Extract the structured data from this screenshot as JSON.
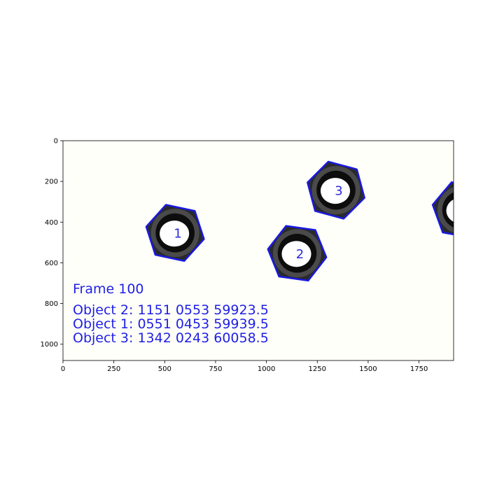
{
  "figure": {
    "x_axis": {
      "min": 0,
      "max": 1920,
      "ticks": [
        0,
        250,
        500,
        750,
        1000,
        1250,
        1500,
        1750
      ]
    },
    "y_axis": {
      "min": 0,
      "max": 1080,
      "inverted": true,
      "ticks": [
        0,
        200,
        400,
        600,
        800,
        1000
      ]
    }
  },
  "frame": {
    "background_color": "#fffffa",
    "outline_color": "#1a1ae0",
    "text_color": "#1f1fe6",
    "frame_label": "Frame 100",
    "object_lines": [
      "Object 2: 1151 0553 59923.5",
      "Object 1: 0551 0453 59939.5",
      "Object 3: 1342 0243 60058.5"
    ],
    "objects": [
      {
        "label": "1",
        "cx": 551,
        "cy": 453,
        "rotation": 12
      },
      {
        "label": "2",
        "cx": 1151,
        "cy": 553,
        "rotation": 8
      },
      {
        "label": "3",
        "cx": 1342,
        "cy": 243,
        "rotation": 15
      },
      {
        "label": "",
        "cx": 1960,
        "cy": 340,
        "rotation": 10
      }
    ]
  }
}
